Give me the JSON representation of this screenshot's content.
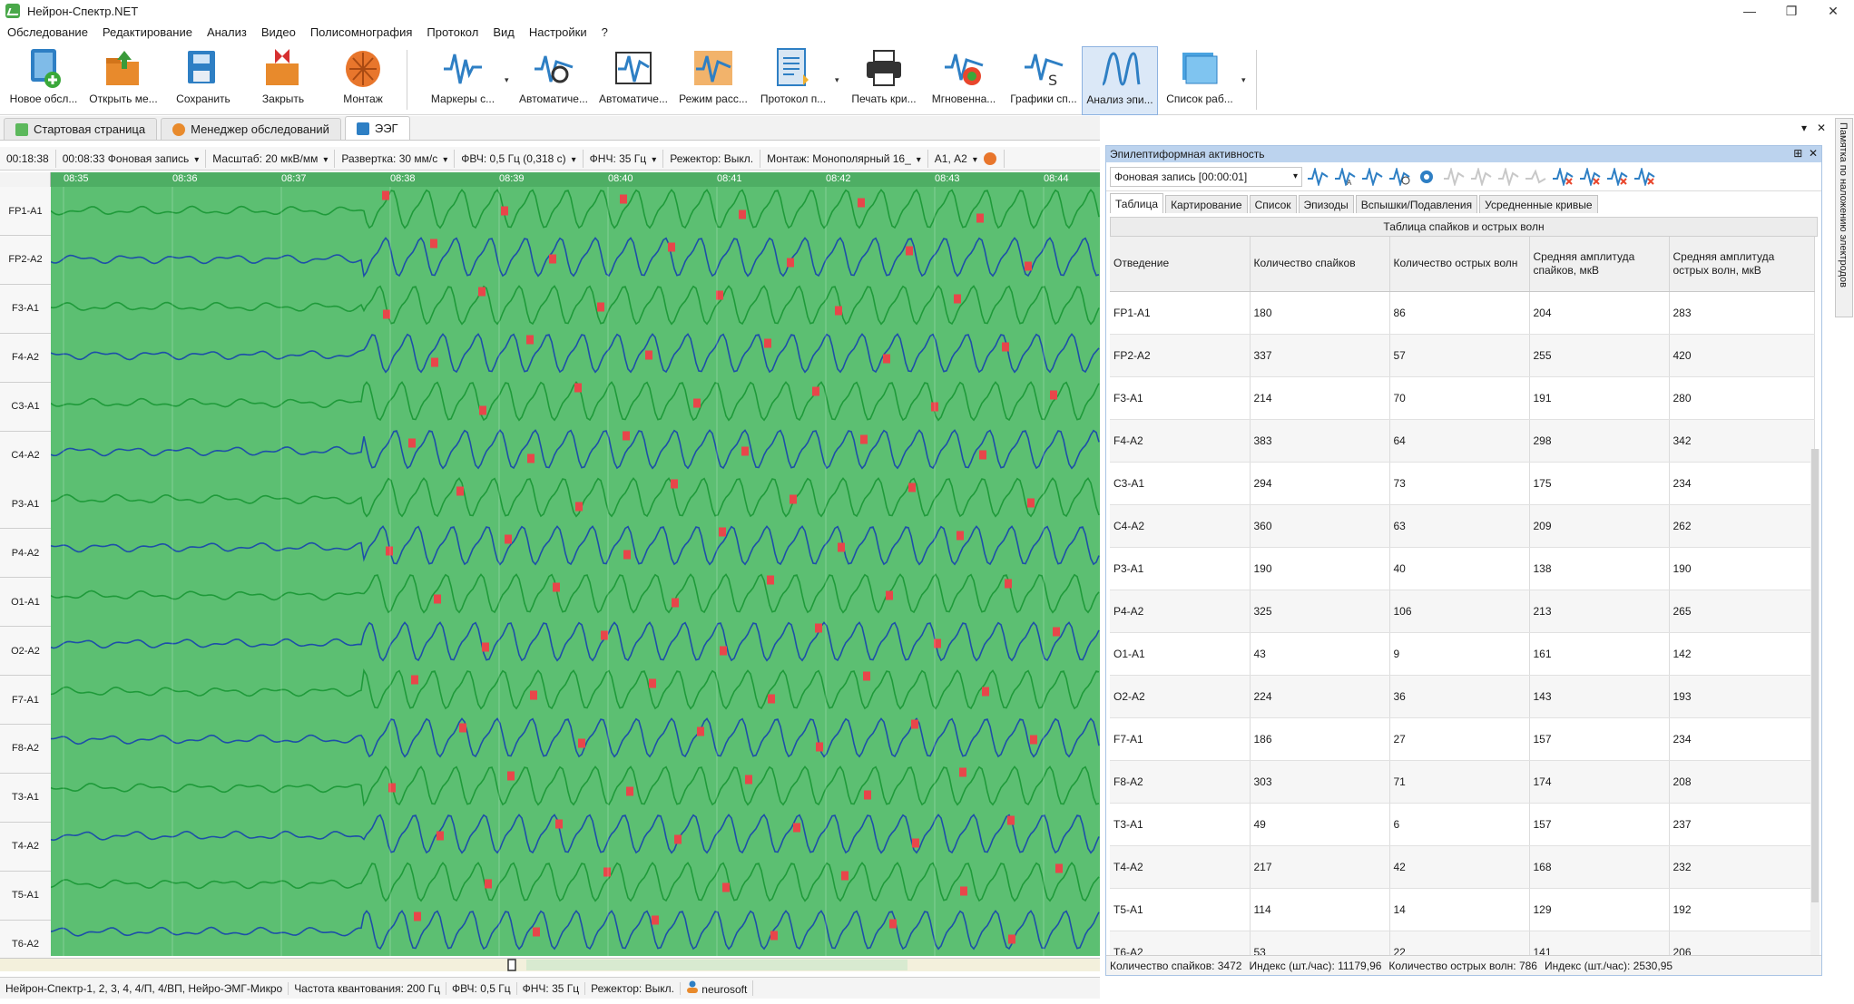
{
  "app": {
    "title": "Нейрон-Спектр.NET",
    "win_min": "—",
    "win_max": "❐",
    "win_close": "✕"
  },
  "menu": [
    "Обследование",
    "Редактирование",
    "Анализ",
    "Видео",
    "Полисомнография",
    "Протокол",
    "Вид",
    "Настройки",
    "?"
  ],
  "toolbar": [
    {
      "label": "Новое обсл...",
      "icon": "new-exam-icon"
    },
    {
      "label": "Открыть ме...",
      "icon": "open-icon"
    },
    {
      "label": "Сохранить",
      "icon": "save-icon"
    },
    {
      "label": "Закрыть",
      "icon": "close-exam-icon"
    },
    {
      "label": "Монтаж",
      "icon": "montage-icon"
    },
    {
      "label": "Маркеры с...",
      "icon": "markers-icon"
    },
    {
      "label": "Автоматиче...",
      "icon": "auto-analysis-icon"
    },
    {
      "label": "Автоматиче...",
      "icon": "auto-analysis2-icon"
    },
    {
      "label": "Режим расс...",
      "icon": "mode-icon"
    },
    {
      "label": "Протокол п...",
      "icon": "protocol-icon"
    },
    {
      "label": "Печать кри...",
      "icon": "print-icon"
    },
    {
      "label": "Мгновенна...",
      "icon": "instant-map-icon"
    },
    {
      "label": "Графики сп...",
      "icon": "spectrum-icon"
    },
    {
      "label": "Анализ эпи...",
      "icon": "epi-analysis-icon"
    },
    {
      "label": "Список раб...",
      "icon": "worklist-icon"
    }
  ],
  "doc_tabs": [
    "Стартовая страница",
    "Менеджер обследований",
    "ЭЭГ"
  ],
  "eeg_bar": {
    "time1": "00:18:38",
    "time2": "00:08:33",
    "record": "Фоновая запись",
    "scale_label": "Масштаб:",
    "scale_value": "20 мкВ/мм",
    "sweep_label": "Развертка:",
    "sweep_value": "30 мм/с",
    "hpf_label": "ФВЧ:",
    "hpf_value": "0,5 Гц (0,318 с)",
    "lpf_label": "ФНЧ:",
    "lpf_value": "35 Гц",
    "notch_label": "Режектор:",
    "notch_value": "Выкл.",
    "montage_label": "Монтаж:",
    "montage_value": "Монополярный 16_",
    "ref_value": "А1, А2"
  },
  "time_ticks": [
    "08:35",
    "08:36",
    "08:37",
    "08:38",
    "08:39",
    "08:40",
    "08:41",
    "08:42",
    "08:43",
    "08:44"
  ],
  "channels": [
    "FP1-A1",
    "FP2-A2",
    "F3-A1",
    "F4-A2",
    "C3-A1",
    "C4-A2",
    "P3-A1",
    "P4-A2",
    "O1-A1",
    "O2-A2",
    "F7-A1",
    "F8-A2",
    "T3-A1",
    "T4-A2",
    "T5-A1",
    "T6-A2"
  ],
  "status": {
    "device": "Нейрон-Спектр-1, 2, 3, 4, 4/П, 4/ВП, Нейро-ЭМГ-Микро",
    "sampling": "Частота квантования:  200 Гц",
    "hpf": "ФВЧ:  0,5 Гц",
    "lpf": "ФНЧ:  35 Гц",
    "notch": "Режектор:  Выкл.",
    "vendor": "neurosoft"
  },
  "panel": {
    "title": "Эпилептиформная активность",
    "record_select": "Фоновая запись [00:00:01]",
    "tabs": [
      "Таблица",
      "Картирование",
      "Список",
      "Эпизоды",
      "Вспышки/Подавления",
      "Усредненные кривые"
    ],
    "table_title": "Таблица спайков и острых волн",
    "columns": [
      "Отведение",
      "Количество спайков",
      "Количество острых волн",
      "Средняя амплитуда спайков, мкВ",
      "Средняя амплитуда острых волн, мкВ"
    ],
    "rows": [
      [
        "FP1-A1",
        "180",
        "86",
        "204",
        "283"
      ],
      [
        "FP2-A2",
        "337",
        "57",
        "255",
        "420"
      ],
      [
        "F3-A1",
        "214",
        "70",
        "191",
        "280"
      ],
      [
        "F4-A2",
        "383",
        "64",
        "298",
        "342"
      ],
      [
        "C3-A1",
        "294",
        "73",
        "175",
        "234"
      ],
      [
        "C4-A2",
        "360",
        "63",
        "209",
        "262"
      ],
      [
        "P3-A1",
        "190",
        "40",
        "138",
        "190"
      ],
      [
        "P4-A2",
        "325",
        "106",
        "213",
        "265"
      ],
      [
        "O1-A1",
        "43",
        "9",
        "161",
        "142"
      ],
      [
        "O2-A2",
        "224",
        "36",
        "143",
        "193"
      ],
      [
        "F7-A1",
        "186",
        "27",
        "157",
        "234"
      ],
      [
        "F8-A2",
        "303",
        "71",
        "174",
        "208"
      ],
      [
        "T3-A1",
        "49",
        "6",
        "157",
        "237"
      ],
      [
        "T4-A2",
        "217",
        "42",
        "168",
        "232"
      ],
      [
        "T5-A1",
        "114",
        "14",
        "129",
        "192"
      ],
      [
        "T6-A2",
        "53",
        "22",
        "141",
        "206"
      ]
    ],
    "status": {
      "spikes": "Количество спайков: 3472",
      "spike_index": "Индекс (шт./час): 11179,96",
      "waves": "Количество острых волн: 786",
      "wave_index": "Индекс (шт./час): 2530,95"
    }
  },
  "side_strip": "Памятка по наложению электродов",
  "colors": {
    "eeg_bg": "#5cbf72",
    "trace_green": "#1f9a3a",
    "trace_blue": "#1d4fa8",
    "marker_red": "#e8464a"
  }
}
